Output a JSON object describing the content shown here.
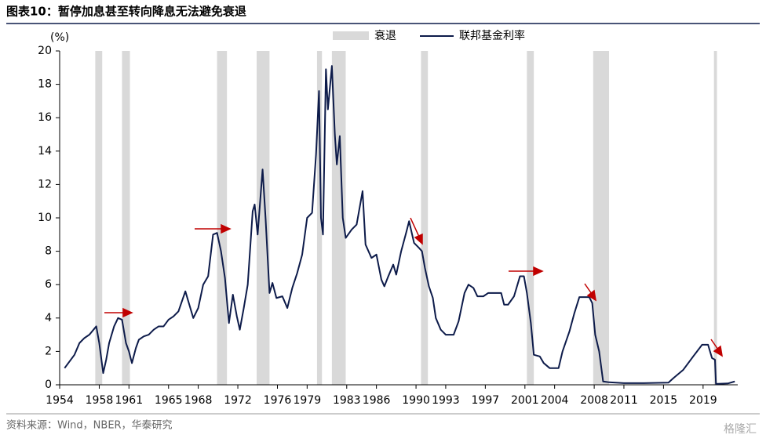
{
  "title": "图表10：暂停加息甚至转向降息无法避免衰退",
  "source": "资料来源：Wind，NBER，华泰研究",
  "watermark": "格隆汇",
  "chart_data": {
    "type": "line",
    "y_unit": "(%)",
    "xlim": [
      1954,
      2022.5
    ],
    "ylim": [
      0,
      20
    ],
    "yticks": [
      0,
      2,
      4,
      6,
      8,
      10,
      12,
      14,
      16,
      18,
      20
    ],
    "xticks": [
      1954,
      1958,
      1961,
      1965,
      1968,
      1972,
      1976,
      1979,
      1983,
      1986,
      1990,
      1993,
      1997,
      2001,
      2004,
      2008,
      2011,
      2015,
      2019
    ],
    "recession_name": "衰退",
    "recession_color": "#d9d9d9",
    "recessions": [
      [
        1957.6,
        1958.3
      ],
      [
        1960.3,
        1961.1
      ],
      [
        1969.9,
        1970.9
      ],
      [
        1973.9,
        1975.2
      ],
      [
        1980.0,
        1980.5
      ],
      [
        1981.5,
        1982.9
      ],
      [
        1990.5,
        1991.2
      ],
      [
        2001.2,
        2001.9
      ],
      [
        2007.9,
        2009.5
      ],
      [
        2020.1,
        2020.4
      ]
    ],
    "series": [
      {
        "name": "联邦基金利率",
        "color": "#0d1b4a",
        "x": [
          1954.5,
          1955,
          1955.5,
          1956,
          1956.5,
          1957,
          1957.7,
          1958.0,
          1958.4,
          1958.7,
          1959,
          1959.5,
          1959.9,
          1960.3,
          1960.7,
          1961.0,
          1961.3,
          1961.7,
          1962,
          1962.5,
          1963,
          1963.5,
          1964,
          1964.5,
          1965,
          1965.5,
          1966,
          1966.7,
          1967,
          1967.5,
          1968,
          1968.5,
          1969,
          1969.5,
          1969.9,
          1970.3,
          1970.7,
          1971.1,
          1971.5,
          1971.9,
          1972.2,
          1972.6,
          1973,
          1973.5,
          1973.7,
          1974,
          1974.5,
          1974.8,
          1975.2,
          1975.5,
          1975.9,
          1976.5,
          1977,
          1977.5,
          1978,
          1978.5,
          1979,
          1979.5,
          1979.9,
          1980.2,
          1980.4,
          1980.6,
          1980.9,
          1981.1,
          1981.5,
          1981.8,
          1982.0,
          1982.3,
          1982.6,
          1982.9,
          1983.5,
          1984,
          1984.6,
          1984.9,
          1985.5,
          1986,
          1986.5,
          1986.8,
          1987.2,
          1987.7,
          1988,
          1988.5,
          1989,
          1989.3,
          1989.8,
          1990.3,
          1990.6,
          1990.9,
          1991.3,
          1991.7,
          1992,
          1992.5,
          1993,
          1993.8,
          1994.3,
          1994.9,
          1995.3,
          1995.8,
          1996.2,
          1996.8,
          1997.3,
          1998.6,
          1998.9,
          1999.3,
          1999.9,
          2000.5,
          2000.9,
          2001.2,
          2001.6,
          2001.9,
          2002.5,
          2002.9,
          2003.5,
          2004.4,
          2004.8,
          2005.5,
          2006.0,
          2006.5,
          2007.5,
          2007.8,
          2008.1,
          2008.5,
          2008.9,
          2009.5,
          2011,
          2013,
          2015.5,
          2016,
          2017,
          2018,
          2018.9,
          2019.5,
          2019.9,
          2020.2,
          2020.3,
          2021.5,
          2022.2
        ],
        "values": [
          1.0,
          1.4,
          1.8,
          2.5,
          2.8,
          3.0,
          3.5,
          2.5,
          0.7,
          1.5,
          2.5,
          3.5,
          4.0,
          3.9,
          2.5,
          2.0,
          1.3,
          2.2,
          2.7,
          2.9,
          3.0,
          3.3,
          3.5,
          3.5,
          3.9,
          4.1,
          4.4,
          5.6,
          5.0,
          4.0,
          4.6,
          6.0,
          6.5,
          9.0,
          9.1,
          8.0,
          6.4,
          3.7,
          5.4,
          4.1,
          3.3,
          4.6,
          6.0,
          10.4,
          10.8,
          9.0,
          12.9,
          10.0,
          5.5,
          6.1,
          5.2,
          5.3,
          4.6,
          5.8,
          6.7,
          7.8,
          10.0,
          10.3,
          13.8,
          17.6,
          10.0,
          9.0,
          18.9,
          16.5,
          19.1,
          15.0,
          13.2,
          14.9,
          10.0,
          8.8,
          9.3,
          9.6,
          11.6,
          8.4,
          7.6,
          7.8,
          6.3,
          5.9,
          6.5,
          7.2,
          6.6,
          8.0,
          9.1,
          9.8,
          8.5,
          8.2,
          8.0,
          7.0,
          5.9,
          5.2,
          4.0,
          3.3,
          3.0,
          3.0,
          3.8,
          5.5,
          6.0,
          5.8,
          5.3,
          5.3,
          5.5,
          5.5,
          4.8,
          4.8,
          5.3,
          6.5,
          6.5,
          5.5,
          3.7,
          1.8,
          1.7,
          1.3,
          1.0,
          1.0,
          2.0,
          3.2,
          4.3,
          5.25,
          5.25,
          4.9,
          3.0,
          2.0,
          0.2,
          0.15,
          0.1,
          0.1,
          0.13,
          0.4,
          0.9,
          1.7,
          2.4,
          2.4,
          1.6,
          1.5,
          0.05,
          0.08,
          0.2
        ]
      }
    ]
  }
}
